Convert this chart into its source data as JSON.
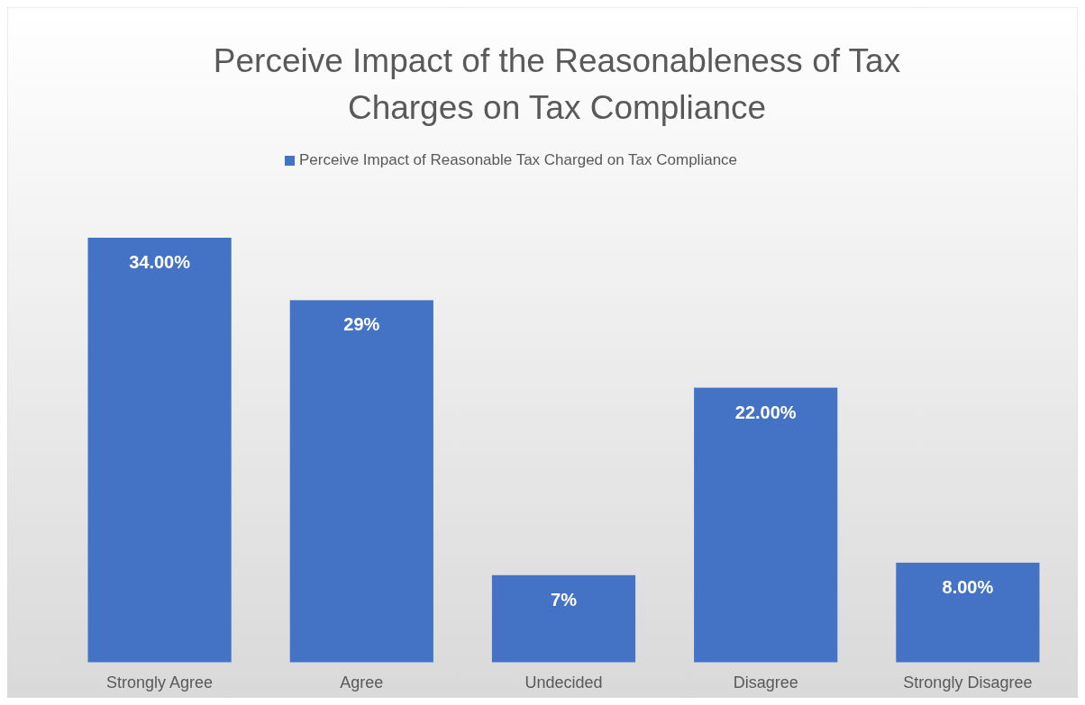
{
  "chart_data": {
    "type": "bar",
    "title": "Perceive Impact of the Reasonableness of Tax Charges on Tax Compliance",
    "categories": [
      "Strongly Agree",
      "Agree",
      "Undecided",
      "Disagree",
      "Strongly Disagree"
    ],
    "series": [
      {
        "name": "Perceive Impact of Reasonable Tax Charged on Tax Compliance",
        "color": "#4472c4",
        "values": [
          34,
          29,
          7,
          22,
          8
        ],
        "value_labels": [
          "34.00%",
          "29%",
          "7%",
          "22.00%",
          "8.00%"
        ]
      }
    ],
    "legend": "top"
  }
}
